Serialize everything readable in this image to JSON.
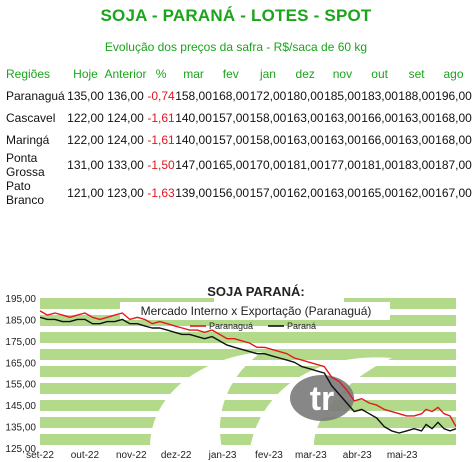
{
  "header": {
    "title": "SOJA - PARANÁ - LOTES - SPOT",
    "subtitle": "Evolução dos preços da safra - R$/saca de 60 kg"
  },
  "table": {
    "columns": [
      "Regiões",
      "Hoje",
      "Anterior",
      "%",
      "mar",
      "fev",
      "jan",
      "dez",
      "nov",
      "out",
      "set",
      "ago"
    ],
    "rows": [
      {
        "region": "Paranaguá",
        "hoje": "135,00",
        "anterior": "136,00",
        "pct": "-0,74",
        "mar": "158,00",
        "fev": "168,00",
        "jan": "172,00",
        "dez": "180,00",
        "nov": "185,00",
        "out": "183,00",
        "set": "188,00",
        "ago": "196,00"
      },
      {
        "region": "Cascavel",
        "hoje": "122,00",
        "anterior": "124,00",
        "pct": "-1,61",
        "mar": "140,00",
        "fev": "157,00",
        "jan": "158,00",
        "dez": "163,00",
        "nov": "163,00",
        "out": "166,00",
        "set": "163,00",
        "ago": "168,00"
      },
      {
        "region": "Maringá",
        "hoje": "122,00",
        "anterior": "124,00",
        "pct": "-1,61",
        "mar": "140,00",
        "fev": "157,00",
        "jan": "158,00",
        "dez": "163,00",
        "nov": "163,00",
        "out": "166,00",
        "set": "163,00",
        "ago": "168,00"
      },
      {
        "region": "Ponta Grossa",
        "hoje": "131,00",
        "anterior": "133,00",
        "pct": "-1,50",
        "mar": "147,00",
        "fev": "165,00",
        "jan": "170,00",
        "dez": "181,00",
        "nov": "177,00",
        "out": "181,00",
        "set": "183,00",
        "ago": "187,00"
      },
      {
        "region": "Pato Branco",
        "hoje": "121,00",
        "anterior": "123,00",
        "pct": "-1,63",
        "mar": "139,00",
        "fev": "156,00",
        "jan": "157,00",
        "dez": "162,00",
        "nov": "163,00",
        "out": "165,00",
        "set": "162,00",
        "ago": "167,00"
      }
    ]
  },
  "chart_data": {
    "type": "line",
    "title": "SOJA PARANÁ:",
    "subtitle": "Mercado Interno x Exportação (Paranaguá)",
    "watermark": "tr",
    "xlabel": "",
    "ylabel": "",
    "legend_position": "top-center",
    "ylim": [
      125,
      195
    ],
    "yticks": [
      125,
      135,
      145,
      155,
      165,
      175,
      185,
      195
    ],
    "ytick_labels": [
      "125,00",
      "135,00",
      "145,00",
      "155,00",
      "165,00",
      "175,00",
      "185,00",
      "195,00"
    ],
    "xlim": [
      0,
      278
    ],
    "xticks": [
      {
        "label": "set-22",
        "x": 0
      },
      {
        "label": "out-22",
        "x": 30
      },
      {
        "label": "nov-22",
        "x": 61
      },
      {
        "label": "dez-22",
        "x": 91
      },
      {
        "label": "jan-23",
        "x": 122
      },
      {
        "label": "fev-23",
        "x": 153
      },
      {
        "label": "mar-23",
        "x": 181
      },
      {
        "label": "abr-23",
        "x": 212
      },
      {
        "label": "mai-23",
        "x": 242
      }
    ],
    "grid": false,
    "series": [
      {
        "name": "Paranaguá",
        "color": "#e31a1c",
        "x": [
          0,
          5,
          10,
          15,
          20,
          25,
          30,
          35,
          40,
          45,
          50,
          55,
          60,
          65,
          70,
          75,
          80,
          85,
          90,
          95,
          100,
          105,
          110,
          115,
          120,
          125,
          130,
          135,
          140,
          145,
          150,
          155,
          160,
          165,
          170,
          175,
          180,
          185,
          190,
          195,
          200,
          205,
          210,
          215,
          220,
          225,
          230,
          235,
          240,
          245,
          250,
          255,
          258,
          262,
          266,
          270,
          274,
          278
        ],
        "y": [
          189,
          187,
          188,
          187,
          186,
          187,
          188,
          186,
          185,
          186,
          187,
          188,
          185,
          186,
          185,
          183,
          184,
          183,
          182,
          181,
          180,
          180,
          179,
          180,
          178,
          176,
          176,
          175,
          174,
          172,
          172,
          171,
          170,
          169,
          167,
          166,
          165,
          164,
          163,
          158,
          156,
          152,
          147,
          148,
          146,
          145,
          143,
          142,
          141,
          140,
          140,
          141,
          143,
          142,
          144,
          141,
          140,
          135
        ]
      },
      {
        "name": "Paraná",
        "color": "#111111",
        "x": [
          0,
          5,
          10,
          15,
          20,
          25,
          30,
          35,
          40,
          45,
          50,
          55,
          60,
          65,
          70,
          75,
          80,
          85,
          90,
          95,
          100,
          105,
          110,
          115,
          120,
          125,
          130,
          135,
          140,
          145,
          150,
          155,
          160,
          165,
          170,
          175,
          180,
          185,
          190,
          195,
          200,
          205,
          210,
          215,
          220,
          225,
          230,
          235,
          240,
          245,
          250,
          255,
          258,
          262,
          266,
          270,
          274,
          278
        ],
        "y": [
          186,
          185,
          185,
          184,
          184,
          185,
          185,
          183,
          183,
          184,
          184,
          185,
          183,
          183,
          182,
          181,
          181,
          180,
          179,
          178,
          178,
          177,
          176,
          177,
          175,
          173,
          172,
          171,
          170,
          169,
          169,
          168,
          167,
          166,
          165,
          163,
          162,
          161,
          160,
          154,
          150,
          146,
          142,
          143,
          141,
          139,
          135,
          133,
          132,
          133,
          134,
          133,
          136,
          134,
          137,
          134,
          133,
          134
        ]
      }
    ]
  }
}
